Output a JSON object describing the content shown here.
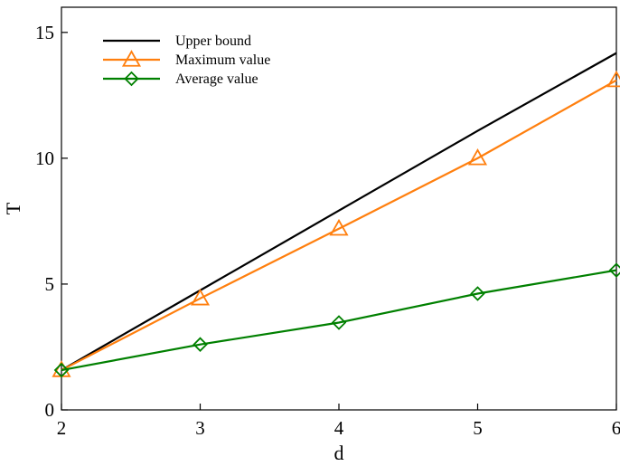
{
  "chart_data": {
    "type": "line",
    "title": "",
    "xlabel": "d",
    "ylabel": "T",
    "xlim": [
      2,
      6
    ],
    "ylim": [
      0,
      16
    ],
    "xticks": [
      2,
      3,
      4,
      5,
      6
    ],
    "yticks": [
      0,
      5,
      10,
      15
    ],
    "grid": false,
    "legend_position": "top-left",
    "x": [
      2,
      3,
      4,
      5,
      6
    ],
    "series": [
      {
        "name": "Upper bound",
        "values": [
          1.58,
          4.75,
          7.92,
          11.09,
          14.18
        ],
        "color": "#000000",
        "marker": "none"
      },
      {
        "name": "Maximum value",
        "values": [
          1.58,
          4.43,
          7.2,
          10.0,
          13.1
        ],
        "color": "#ff7f0e",
        "marker": "triangle"
      },
      {
        "name": "Average value",
        "values": [
          1.58,
          2.6,
          3.47,
          4.62,
          5.55
        ],
        "color": "#008000",
        "marker": "diamond"
      }
    ]
  }
}
